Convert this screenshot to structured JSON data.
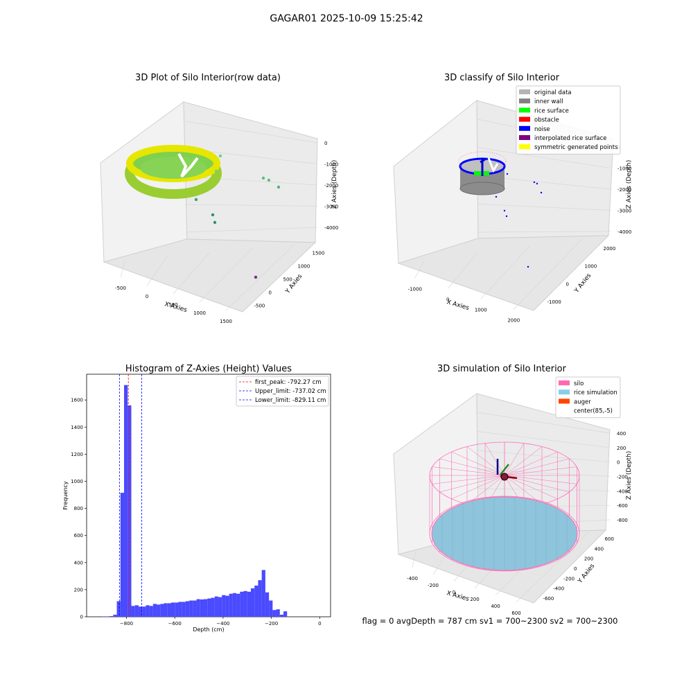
{
  "figure_title": "GAGAR01 2025-10-09 15:25:42",
  "status_text": "flag = 0     avgDepth = 787 cm  sv1 = 700~2300  sv2 = 700~2300",
  "colors": {
    "hist_bar": "#4a4aff",
    "first_peak": "#ff0000",
    "limits": "#0000ff",
    "silo": "#ff69b4",
    "rice_sim": "#87ceeb",
    "auger": "#ff4500",
    "inner_wall": "#808080",
    "rice_surface": "#00ff00",
    "noise": "#0000ff",
    "raw_ring": "#c8e61e"
  },
  "chart_data": [
    {
      "type": "scatter",
      "title": "3D Plot of Silo Interior(row data)",
      "xlabel": "X Axies",
      "ylabel": "Y Axies",
      "zlabel": "Z Axies (Depth)",
      "x_ticks": [
        "-500",
        "0",
        "500",
        "1000",
        "1500"
      ],
      "y_ticks": [
        "-500",
        "0",
        "500",
        "1000",
        "1500"
      ],
      "z_ticks": [
        "0",
        "-1000",
        "-2000",
        "-3000",
        "-4000"
      ]
    },
    {
      "type": "scatter",
      "title": "3D classify of Silo Interior",
      "xlabel": "X Axies",
      "ylabel": "Y Axies",
      "zlabel": "Z Axies (Depth)",
      "x_ticks": [
        "-1000",
        "0",
        "1000",
        "2000"
      ],
      "y_ticks": [
        "-1000",
        "0",
        "1000",
        "2000"
      ],
      "z_ticks": [
        "0",
        "-1000",
        "-2000",
        "-3000",
        "-4000"
      ],
      "legend_position": "top-right",
      "legend": [
        {
          "label": "original data",
          "color": "#b4b4b4"
        },
        {
          "label": "inner wall",
          "color": "#808080"
        },
        {
          "label": "rice surface",
          "color": "#00ff00"
        },
        {
          "label": "obstacle",
          "color": "#ff0000"
        },
        {
          "label": "noise",
          "color": "#0000ff"
        },
        {
          "label": "interpolated rice surface",
          "color": "#800080"
        },
        {
          "label": "symmetric generated points",
          "color": "#ffff00"
        }
      ]
    },
    {
      "type": "bar",
      "title": "Histogram of Z-Axies (Height) Values",
      "xlabel": "Depth (cm)",
      "ylabel": "Frequency",
      "xlim": [
        -965,
        45
      ],
      "ylim": [
        0,
        1790
      ],
      "x_ticks": [
        -800,
        -600,
        -400,
        -200,
        0
      ],
      "y_ticks": [
        0,
        200,
        400,
        600,
        800,
        1000,
        1200,
        1400,
        1600
      ],
      "bin_width": 15,
      "bins": [
        [
          -900,
          2
        ],
        [
          -885,
          3
        ],
        [
          -870,
          5
        ],
        [
          -855,
          15
        ],
        [
          -840,
          115
        ],
        [
          -825,
          915
        ],
        [
          -810,
          1710
        ],
        [
          -795,
          1560
        ],
        [
          -780,
          80
        ],
        [
          -765,
          85
        ],
        [
          -750,
          75
        ],
        [
          -735,
          75
        ],
        [
          -720,
          85
        ],
        [
          -705,
          80
        ],
        [
          -690,
          95
        ],
        [
          -675,
          90
        ],
        [
          -660,
          95
        ],
        [
          -645,
          100
        ],
        [
          -630,
          100
        ],
        [
          -615,
          105
        ],
        [
          -600,
          105
        ],
        [
          -585,
          110
        ],
        [
          -570,
          110
        ],
        [
          -555,
          115
        ],
        [
          -540,
          120
        ],
        [
          -525,
          120
        ],
        [
          -510,
          130
        ],
        [
          -495,
          128
        ],
        [
          -480,
          130
        ],
        [
          -465,
          135
        ],
        [
          -450,
          140
        ],
        [
          -435,
          150
        ],
        [
          -420,
          145
        ],
        [
          -405,
          160
        ],
        [
          -390,
          155
        ],
        [
          -375,
          170
        ],
        [
          -360,
          175
        ],
        [
          -345,
          170
        ],
        [
          -330,
          185
        ],
        [
          -315,
          190
        ],
        [
          -300,
          185
        ],
        [
          -285,
          210
        ],
        [
          -270,
          230
        ],
        [
          -255,
          270
        ],
        [
          -240,
          345
        ],
        [
          -225,
          180
        ],
        [
          -210,
          120
        ],
        [
          -195,
          50
        ],
        [
          -180,
          55
        ],
        [
          -165,
          15
        ],
        [
          -150,
          40
        ]
      ],
      "vlines": [
        {
          "label": "first_peak: -792.27 cm",
          "x": -792.27,
          "color": "#ff0000"
        },
        {
          "label": "Upper_limit: -737.02 cm",
          "x": -737.02,
          "color": "#0000ff"
        },
        {
          "label": "Lower_limit: -829.11 cm",
          "x": -829.11,
          "color": "#0000ff"
        }
      ],
      "legend_position": "top-right"
    },
    {
      "type": "scatter",
      "title": "3D simulation of Silo Interior",
      "xlabel": "X Axies",
      "ylabel": "Y Axies",
      "zlabel": "Z Axies (Depth)",
      "x_ticks": [
        "-400",
        "-200",
        "0",
        "200",
        "400",
        "600"
      ],
      "y_ticks": [
        "-600",
        "-400",
        "-200",
        "0",
        "200",
        "400",
        "600"
      ],
      "z_ticks": [
        "400",
        "200",
        "0",
        "-200",
        "-400",
        "-600",
        "-800"
      ],
      "legend_position": "top-right",
      "legend": [
        {
          "label": "silo",
          "color": "#ff69b4"
        },
        {
          "label": "rice simulation",
          "color": "#87ceeb"
        },
        {
          "label": "auger",
          "color": "#ff4500"
        },
        {
          "label": "center(85,-5)",
          "color": "#ffffff"
        }
      ]
    }
  ]
}
